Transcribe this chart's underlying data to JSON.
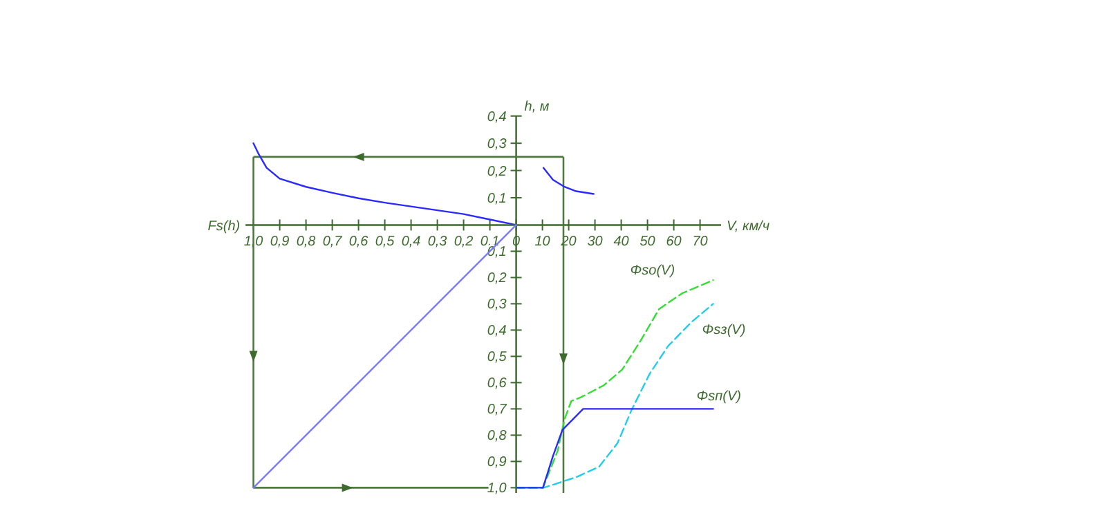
{
  "chart_data": [
    {
      "type": "line",
      "xlabel": "Fs(h)",
      "xlim": [
        1.03,
        0
      ],
      "ylim": [
        0,
        0.4
      ],
      "tick_labels": "x",
      "marker": "none",
      "xticks": [
        {
          "value": 1,
          "label": "1,0"
        },
        {
          "value": 0.9,
          "label": "0,9"
        },
        {
          "value": 0.8,
          "label": "0,8"
        },
        {
          "value": 0.7,
          "label": "0,7"
        },
        {
          "value": 0.6,
          "label": "0,6"
        },
        {
          "value": 0.5,
          "label": "0,5"
        },
        {
          "value": 0.4,
          "label": "0,4"
        },
        {
          "value": 0.3,
          "label": "0,3"
        },
        {
          "value": 0.2,
          "label": "0,2"
        },
        {
          "value": 0.1,
          "label": "0,1"
        }
      ],
      "series": [
        {
          "color": "#2a2aff",
          "line_style": "solid",
          "x": [
            1,
            0.98,
            0.95,
            0.9,
            0.8,
            0.7,
            0.6,
            0.5,
            0.4,
            0.3,
            0.2,
            0.1,
            0
          ],
          "values": [
            0.3,
            0.26,
            0.21,
            0.17,
            0.14,
            0.118,
            0.098,
            0.082,
            0.068,
            0.054,
            0.04,
            0.02,
            0
          ]
        }
      ],
      "ref_lines": [
        {
          "axis": "y",
          "value": 0.25,
          "color": "#4f7a3f"
        },
        {
          "axis": "x",
          "value": 1,
          "color": "#4f7a3f"
        }
      ]
    },
    {
      "type": "line",
      "xlabel": "V, км/ч",
      "ylabel": "h, м",
      "xlim": [
        0,
        78
      ],
      "ylim": [
        0,
        0.4
      ],
      "marker": "none",
      "xticks": [
        0,
        10,
        20,
        30,
        40,
        50,
        60,
        70
      ],
      "yticks": [
        {
          "value": 0.1,
          "label": "0,1"
        },
        {
          "value": 0.2,
          "label": "0,2"
        },
        {
          "value": 0.3,
          "label": "0,3"
        },
        {
          "value": 0.4,
          "label": "0,4"
        }
      ],
      "series": [
        {
          "color": "#2a2aff",
          "line_style": "solid",
          "x": [
            10.4,
            14,
            18.4,
            22.8,
            29.5
          ],
          "values": [
            0.21,
            0.166,
            0.14,
            0.124,
            0.114
          ]
        }
      ],
      "ref_lines": [
        {
          "axis": "y",
          "value": 0.25,
          "color": "#4f7a3f"
        },
        {
          "axis": "x",
          "value": 18,
          "color": "#4f7a3f"
        }
      ]
    },
    {
      "type": "line",
      "xlim": [
        0,
        78
      ],
      "ylim": [
        1.02,
        0
      ],
      "tick_labels": "y",
      "marker": "none",
      "yticks": [
        {
          "value": 0.1,
          "label": "0,1"
        },
        {
          "value": 0.2,
          "label": "0,2"
        },
        {
          "value": 0.3,
          "label": "0,3"
        },
        {
          "value": 0.4,
          "label": "0,4"
        },
        {
          "value": 0.5,
          "label": "0,5"
        },
        {
          "value": 0.6,
          "label": "0,6"
        },
        {
          "value": 0.7,
          "label": "0,7"
        },
        {
          "value": 0.8,
          "label": "0,8"
        },
        {
          "value": 0.9,
          "label": "0,9"
        },
        {
          "value": 1,
          "label": "1,0"
        }
      ],
      "series": [
        {
          "name": "Φsо(V)",
          "color": "#33dd33",
          "line_style": "dashed",
          "x": [
            0,
            10.2,
            15.8,
            18.4,
            21,
            24.6,
            33.4,
            40.4,
            47.4,
            54.4,
            63.2,
            75
          ],
          "values": [
            1,
            1,
            0.86,
            0.74,
            0.67,
            0.656,
            0.61,
            0.55,
            0.44,
            0.32,
            0.26,
            0.21
          ]
        },
        {
          "name": "Φsз(V)",
          "color": "#22ccee",
          "line_style": "dashed",
          "x": [
            0,
            10.5,
            22.8,
            31.6,
            38.6,
            43.9,
            50.9,
            57.9,
            66.7,
            75
          ],
          "values": [
            1,
            1,
            0.96,
            0.92,
            0.83,
            0.705,
            0.565,
            0.46,
            0.37,
            0.3
          ]
        },
        {
          "name": "Φsп(V)",
          "color": "#2a2aff",
          "line_style": "solid",
          "x": [
            0,
            10.2,
            14,
            17.6,
            25.5,
            75
          ],
          "values": [
            1,
            1,
            0.88,
            0.78,
            0.7,
            0.7
          ]
        }
      ],
      "ref_lines": [
        {
          "axis": "x",
          "value": 18,
          "color": "#4f7a3f"
        }
      ]
    },
    {
      "type": "line",
      "xlim": [
        1.03,
        0
      ],
      "ylim": [
        1.02,
        0
      ],
      "tick_labels": false,
      "marker": "none",
      "series": [
        {
          "color": "#7a7aff",
          "line_style": "solid",
          "x": [
            0,
            1
          ],
          "values": [
            0,
            1
          ]
        }
      ],
      "ref_lines": [
        {
          "axis": "x",
          "value": 1,
          "color": "#4f7a3f"
        },
        {
          "axis": "y",
          "value": 1,
          "color": "#4f7a3f"
        }
      ]
    }
  ]
}
